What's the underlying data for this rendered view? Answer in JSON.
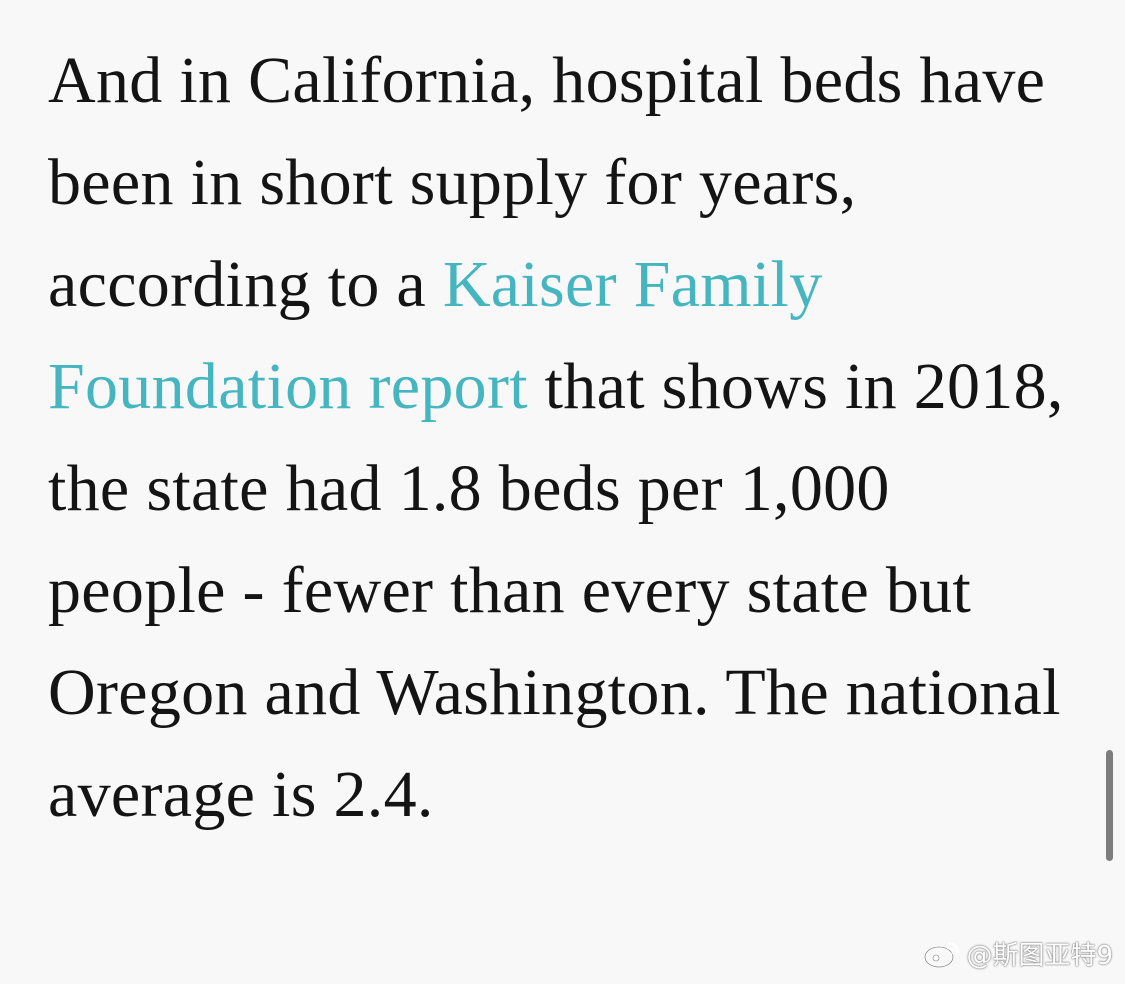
{
  "article": {
    "text_before_link": "And in California, hospital beds have been in short supply for years, according to a ",
    "link_text": "Kaiser Family Foundation report",
    "text_after_link": " that shows in 2018, the state had 1.8 beds per 1,000 people - fewer than every state but Oregon and Washington. The national average is 2.4."
  },
  "watermark": {
    "icon": "weibo-icon",
    "text": "@斯图亚特9"
  },
  "colors": {
    "background": "#f8f8f8",
    "text": "#141414",
    "link": "#45b6c0"
  }
}
